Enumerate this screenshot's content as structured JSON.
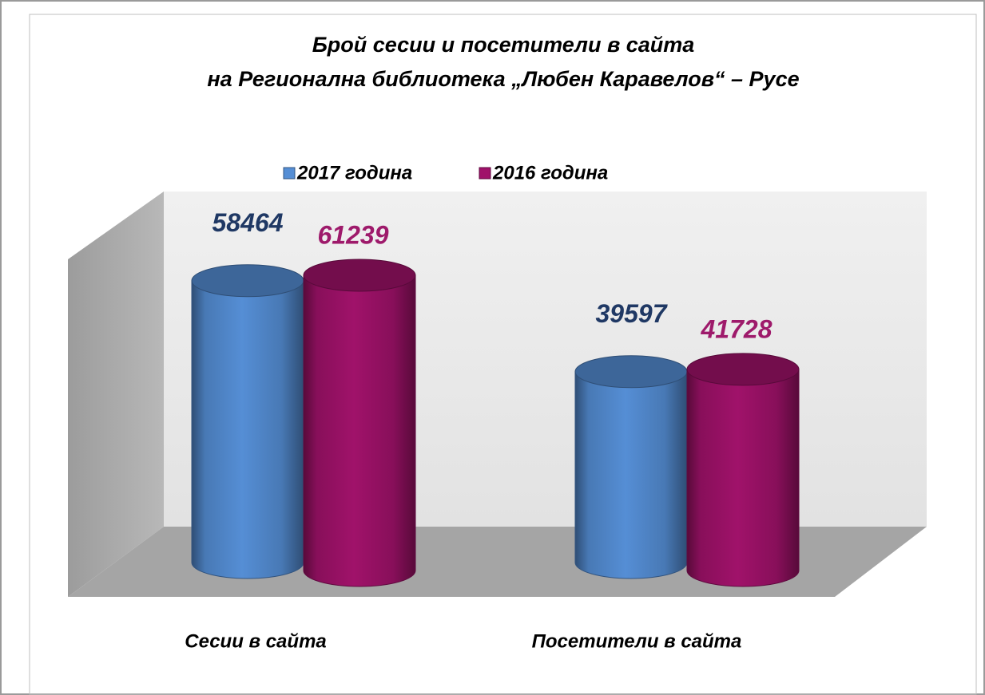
{
  "chart_data": {
    "type": "bar",
    "title": [
      "Брой сесии и посетители в сайта",
      "на Регионална библиотека „Любен Каравелов“ – Русе"
    ],
    "categories": [
      "Сесии в сайта",
      "Посетители в сайта"
    ],
    "series": [
      {
        "name": "2017 година",
        "color": "#558ed5",
        "label_color": "#1f3864",
        "values": [
          58464,
          39597
        ]
      },
      {
        "name": "2016 година",
        "color": "#a0126a",
        "label_color": "#9e1a6b",
        "values": [
          61239,
          41728
        ]
      }
    ],
    "legend": "top"
  }
}
